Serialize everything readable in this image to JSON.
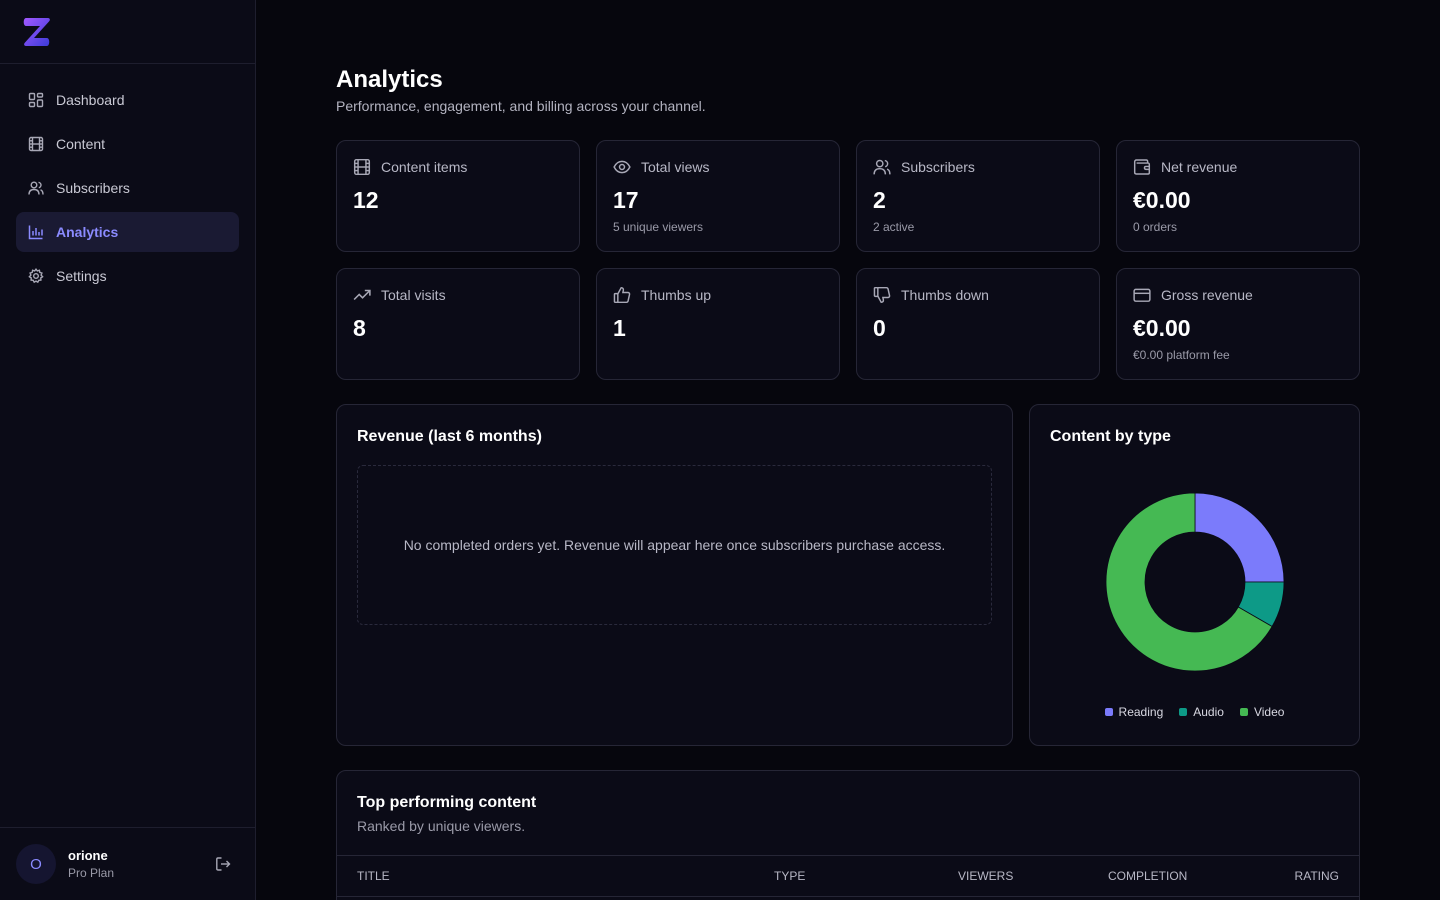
{
  "app": {
    "logo_icon": "z-logo-icon",
    "accent": "#8b8bff"
  },
  "sidebar": {
    "items": [
      {
        "label": "Dashboard",
        "icon": "grid-icon"
      },
      {
        "label": "Content",
        "icon": "film-icon"
      },
      {
        "label": "Subscribers",
        "icon": "users-icon"
      },
      {
        "label": "Analytics",
        "icon": "bar-chart-icon",
        "active": true
      },
      {
        "label": "Settings",
        "icon": "gear-icon"
      }
    ],
    "user": {
      "initial": "O",
      "name": "orione",
      "plan": "Pro Plan"
    }
  },
  "header": {
    "title": "Analytics",
    "subtitle": "Performance, engagement, and billing across your channel."
  },
  "stats": [
    {
      "label": "Content items",
      "value": "12",
      "sub": "",
      "icon": "film-icon"
    },
    {
      "label": "Total views",
      "value": "17",
      "sub": "5 unique viewers",
      "icon": "eye-icon"
    },
    {
      "label": "Subscribers",
      "value": "2",
      "sub": "2 active",
      "icon": "users-icon"
    },
    {
      "label": "Net revenue",
      "value": "€0.00",
      "sub": "0 orders",
      "icon": "wallet-icon"
    },
    {
      "label": "Total visits",
      "value": "8",
      "sub": "",
      "icon": "trending-up-icon"
    },
    {
      "label": "Thumbs up",
      "value": "1",
      "sub": "",
      "icon": "thumbs-up-icon"
    },
    {
      "label": "Thumbs down",
      "value": "0",
      "sub": "",
      "icon": "thumbs-down-icon"
    },
    {
      "label": "Gross revenue",
      "value": "€0.00",
      "sub": "€0.00 platform fee",
      "icon": "credit-card-icon"
    }
  ],
  "revenue_panel": {
    "title": "Revenue (last 6 months)",
    "empty_message": "No completed orders yet. Revenue will appear here once subscribers purchase access."
  },
  "content_type_panel": {
    "title": "Content by type"
  },
  "chart_data": {
    "type": "pie",
    "title": "Content by type",
    "categories": [
      "Reading",
      "Audio",
      "Video"
    ],
    "values": [
      3,
      1,
      8
    ],
    "colors": [
      "#7b7bfb",
      "#0d9a87",
      "#45b953"
    ],
    "donut": true,
    "legend": "bottom"
  },
  "top_content": {
    "title": "Top performing content",
    "subtitle": "Ranked by unique viewers.",
    "columns": [
      "Title",
      "Type",
      "Viewers",
      "Completion",
      "Rating"
    ]
  }
}
